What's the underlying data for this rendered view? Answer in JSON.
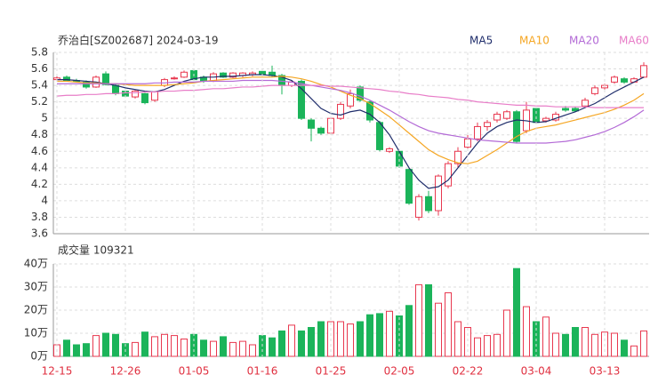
{
  "chart_data": [
    {
      "type": "candlestick",
      "title": "乔治白[SZ002687] 2024-03-19",
      "up_color": "#e8384f",
      "down_color": "#1bb45a",
      "open": [
        5.47,
        5.5,
        5.46,
        5.44,
        5.38,
        5.54,
        5.4,
        5.33,
        5.26,
        5.3,
        5.22,
        5.4,
        5.48,
        5.5,
        5.58,
        5.5,
        5.45,
        5.55,
        5.5,
        5.52,
        5.53,
        5.57,
        5.56,
        5.52,
        5.4,
        5.45,
        4.98,
        4.88,
        4.82,
        5.0,
        5.15,
        5.38,
        5.2,
        4.95,
        4.6,
        4.6,
        4.38,
        3.8,
        4.05,
        3.88,
        4.18,
        4.45,
        4.65,
        4.75,
        4.9,
        4.98,
        5.0,
        5.08,
        4.85,
        5.12,
        4.97,
        4.98,
        5.12,
        5.12,
        5.15,
        5.3,
        5.37,
        5.44,
        5.48,
        5.44,
        5.5
      ],
      "high": [
        5.51,
        5.52,
        5.48,
        5.46,
        5.52,
        5.57,
        5.42,
        5.35,
        5.34,
        5.31,
        5.33,
        5.49,
        5.51,
        5.58,
        5.59,
        5.52,
        5.56,
        5.56,
        5.56,
        5.56,
        5.57,
        5.59,
        5.64,
        5.54,
        5.46,
        5.47,
        5.0,
        4.9,
        5.02,
        5.2,
        5.35,
        5.4,
        5.22,
        4.97,
        4.65,
        4.62,
        4.4,
        4.08,
        4.12,
        4.32,
        4.48,
        4.65,
        4.8,
        4.95,
        4.98,
        5.08,
        5.1,
        5.1,
        5.2,
        5.15,
        5.02,
        5.08,
        5.15,
        5.14,
        5.25,
        5.4,
        5.42,
        5.52,
        5.5,
        5.5,
        5.68
      ],
      "low": [
        5.45,
        5.45,
        5.44,
        5.36,
        5.37,
        5.4,
        5.28,
        5.26,
        5.24,
        5.17,
        5.2,
        5.38,
        5.47,
        5.49,
        5.45,
        5.43,
        5.44,
        5.49,
        5.49,
        5.5,
        5.51,
        5.52,
        5.5,
        5.29,
        5.38,
        4.98,
        4.72,
        4.8,
        4.8,
        4.98,
        5.12,
        5.2,
        4.95,
        4.6,
        4.58,
        4.4,
        3.95,
        3.76,
        3.85,
        3.82,
        4.15,
        4.4,
        4.62,
        4.72,
        4.85,
        4.95,
        4.98,
        4.7,
        4.82,
        4.93,
        4.95,
        4.96,
        5.08,
        5.08,
        5.13,
        5.28,
        5.35,
        5.42,
        5.42,
        5.43,
        5.49
      ],
      "close": [
        5.49,
        5.46,
        5.45,
        5.38,
        5.5,
        5.41,
        5.3,
        5.27,
        5.33,
        5.19,
        5.32,
        5.47,
        5.49,
        5.56,
        5.47,
        5.45,
        5.54,
        5.5,
        5.55,
        5.55,
        5.55,
        5.53,
        5.52,
        5.4,
        5.44,
        5.0,
        4.88,
        4.82,
        5.0,
        5.17,
        5.3,
        5.22,
        4.98,
        4.62,
        4.63,
        4.42,
        3.97,
        4.05,
        3.88,
        4.3,
        4.45,
        4.6,
        4.75,
        4.9,
        4.95,
        5.05,
        5.08,
        4.72,
        5.1,
        4.95,
        5.0,
        5.05,
        5.1,
        5.09,
        5.22,
        5.37,
        5.4,
        5.5,
        5.44,
        5.48,
        5.64
      ],
      "series": [
        {
          "name": "MA5",
          "color": "#1f2d6b",
          "values": [
            5.47,
            5.47,
            5.46,
            5.45,
            5.44,
            5.42,
            5.4,
            5.37,
            5.35,
            5.33,
            5.32,
            5.35,
            5.4,
            5.45,
            5.48,
            5.5,
            5.5,
            5.51,
            5.51,
            5.52,
            5.53,
            5.53,
            5.52,
            5.5,
            5.46,
            5.36,
            5.24,
            5.12,
            5.06,
            5.04,
            5.08,
            5.1,
            5.05,
            4.95,
            4.8,
            4.6,
            4.4,
            4.25,
            4.15,
            4.17,
            4.25,
            4.4,
            4.55,
            4.7,
            4.82,
            4.9,
            4.95,
            4.98,
            4.97,
            4.95,
            4.96,
            5.0,
            5.04,
            5.08,
            5.13,
            5.18,
            5.25,
            5.32,
            5.38,
            5.44,
            5.5
          ]
        },
        {
          "name": "MA10",
          "color": "#f5a623",
          "values": [
            5.45,
            5.45,
            5.44,
            5.43,
            5.43,
            5.42,
            5.42,
            5.41,
            5.4,
            5.4,
            5.4,
            5.4,
            5.41,
            5.42,
            5.43,
            5.45,
            5.46,
            5.47,
            5.48,
            5.49,
            5.5,
            5.5,
            5.5,
            5.51,
            5.5,
            5.48,
            5.45,
            5.41,
            5.38,
            5.33,
            5.28,
            5.24,
            5.18,
            5.1,
            5.02,
            4.92,
            4.82,
            4.72,
            4.62,
            4.55,
            4.5,
            4.46,
            4.45,
            4.48,
            4.55,
            4.62,
            4.7,
            4.78,
            4.84,
            4.88,
            4.9,
            4.92,
            4.95,
            4.98,
            5.01,
            5.04,
            5.07,
            5.11,
            5.16,
            5.22,
            5.3
          ]
        },
        {
          "name": "MA20",
          "color": "#b36ad6",
          "values": [
            5.42,
            5.42,
            5.42,
            5.42,
            5.42,
            5.42,
            5.42,
            5.42,
            5.42,
            5.42,
            5.43,
            5.43,
            5.44,
            5.44,
            5.44,
            5.45,
            5.45,
            5.45,
            5.45,
            5.46,
            5.46,
            5.46,
            5.46,
            5.45,
            5.44,
            5.42,
            5.4,
            5.38,
            5.36,
            5.34,
            5.31,
            5.27,
            5.22,
            5.16,
            5.1,
            5.03,
            4.96,
            4.9,
            4.85,
            4.82,
            4.8,
            4.78,
            4.76,
            4.74,
            4.73,
            4.72,
            4.71,
            4.7,
            4.7,
            4.7,
            4.7,
            4.71,
            4.72,
            4.74,
            4.77,
            4.8,
            4.84,
            4.89,
            4.95,
            5.02,
            5.1
          ]
        },
        {
          "name": "MA60",
          "color": "#e87dc8",
          "values": [
            5.27,
            5.28,
            5.28,
            5.29,
            5.29,
            5.3,
            5.3,
            5.31,
            5.31,
            5.32,
            5.32,
            5.33,
            5.33,
            5.34,
            5.34,
            5.35,
            5.36,
            5.36,
            5.37,
            5.38,
            5.38,
            5.39,
            5.4,
            5.4,
            5.4,
            5.4,
            5.4,
            5.4,
            5.39,
            5.39,
            5.38,
            5.37,
            5.36,
            5.35,
            5.33,
            5.32,
            5.3,
            5.29,
            5.27,
            5.26,
            5.25,
            5.23,
            5.22,
            5.2,
            5.19,
            5.18,
            5.17,
            5.16,
            5.16,
            5.15,
            5.15,
            5.14,
            5.14,
            5.14,
            5.14,
            5.13,
            5.13,
            5.13,
            5.13,
            5.13,
            5.13
          ]
        }
      ],
      "ylim": [
        3.6,
        5.8
      ],
      "yticks": [
        3.6,
        3.8,
        4,
        4.2,
        4.4,
        4.6,
        4.8,
        5,
        5.2,
        5.4,
        5.6,
        5.8
      ],
      "grid": true
    },
    {
      "type": "volume",
      "title": "成交量 109321",
      "categories": [
        "12-15",
        null,
        null,
        null,
        null,
        null,
        null,
        "12-26",
        null,
        null,
        null,
        null,
        null,
        null,
        "01-05",
        null,
        null,
        null,
        null,
        null,
        null,
        "01-16",
        null,
        null,
        null,
        null,
        null,
        null,
        "01-25",
        null,
        null,
        null,
        null,
        null,
        null,
        "02-05",
        null,
        null,
        null,
        null,
        null,
        null,
        "02-22",
        null,
        null,
        null,
        null,
        null,
        null,
        "03-04",
        null,
        null,
        null,
        null,
        null,
        null,
        "03-13",
        null,
        null,
        null,
        null
      ],
      "values": [
        5,
        7,
        5,
        5.5,
        9,
        10,
        9.5,
        5.5,
        6,
        10.5,
        8.5,
        9.5,
        9,
        7.5,
        9.5,
        7,
        6.5,
        8.5,
        6,
        6.5,
        5,
        9,
        8,
        11,
        13.5,
        11,
        12.5,
        15,
        15,
        15,
        14,
        15,
        18,
        18.5,
        19.5,
        17.5,
        22,
        31,
        31,
        23,
        27.5,
        15,
        12.5,
        8,
        9,
        9.5,
        20,
        38,
        21.5,
        15,
        17,
        10,
        9.5,
        12.5,
        12.5,
        9.5,
        10.5,
        10,
        7,
        4.5,
        11
      ],
      "ylim": [
        0,
        40
      ],
      "yticks": [
        {
          "value": 0,
          "label": "0万"
        },
        {
          "value": 10,
          "label": "10万"
        },
        {
          "value": 20,
          "label": "20万"
        },
        {
          "value": 30,
          "label": "30万"
        },
        {
          "value": 40,
          "label": "40万"
        }
      ],
      "grid": true,
      "tick_color": "#e03040"
    }
  ]
}
